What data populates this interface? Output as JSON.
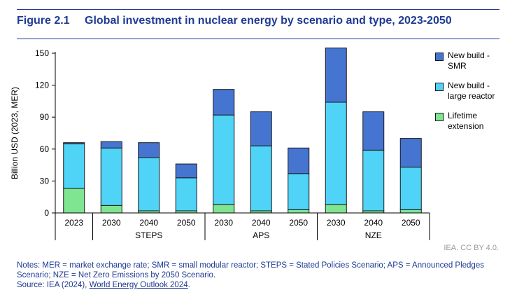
{
  "figure_label": "Figure 2.1",
  "figure_title": "Global investment in nuclear energy by scenario and type, 2023-2050",
  "credit": "IEA. CC BY 4.0.",
  "notes": {
    "line1": "Notes: MER = market exchange rate; SMR = small modular reactor; STEPS = Stated Policies Scenario; APS = Announced Pledges Scenario; NZE = Net Zero Emissions by 2050 Scenario.",
    "source_prefix": "Source: IEA (2024), ",
    "source_link": "World Energy Outlook 2024",
    "source_suffix": "."
  },
  "colors": {
    "smr": "#4575d0",
    "large": "#4fd3f7",
    "lifetime": "#7fe591",
    "axis": "#000000",
    "grid": "#d9d9d9"
  },
  "legend": [
    {
      "label_line1": "New build -",
      "label_line2": "SMR",
      "color": "#4575d0"
    },
    {
      "label_line1": "New build -",
      "label_line2": "large reactor",
      "color": "#4fd3f7"
    },
    {
      "label_line1": "Lifetime",
      "label_line2": "extension",
      "color": "#7fe591"
    }
  ],
  "chart_data": {
    "type": "bar",
    "stacked": true,
    "title": "Global investment in nuclear energy by scenario and type, 2023-2050",
    "ylabel": "Billion USD (2023, MER)",
    "ylim": [
      0,
      150
    ],
    "yticks": [
      0,
      30,
      60,
      90,
      120,
      150
    ],
    "categories": [
      "2023",
      "2030",
      "2040",
      "2050",
      "2030",
      "2040",
      "2050",
      "2030",
      "2040",
      "2050"
    ],
    "groups": [
      {
        "label": "",
        "start": 0,
        "count": 1
      },
      {
        "label": "STEPS",
        "start": 1,
        "count": 3
      },
      {
        "label": "APS",
        "start": 4,
        "count": 3
      },
      {
        "label": "NZE",
        "start": 7,
        "count": 3
      }
    ],
    "series": [
      {
        "name": "Lifetime extension",
        "values": [
          23,
          7,
          2,
          2,
          8,
          2,
          3,
          8,
          2,
          3
        ]
      },
      {
        "name": "New build - large reactor",
        "values": [
          42,
          54,
          50,
          31,
          84,
          61,
          34,
          96,
          57,
          40
        ]
      },
      {
        "name": "New build - SMR",
        "values": [
          1,
          6,
          14,
          13,
          24,
          32,
          24,
          51,
          36,
          27
        ]
      }
    ]
  }
}
